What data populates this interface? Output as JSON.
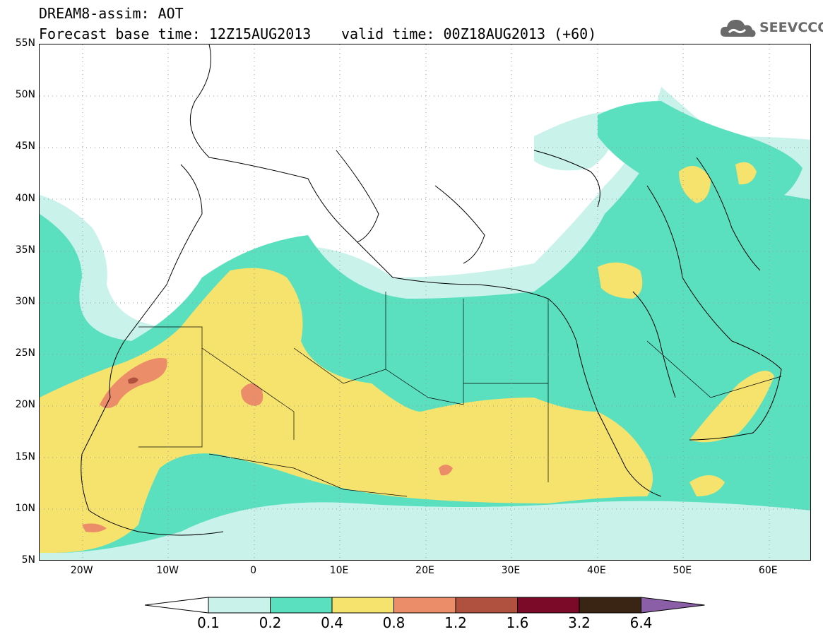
{
  "header": {
    "line1": "DREAM8-assim: AOT",
    "base_time": "Forecast base time: 12Z15AUG2013",
    "valid_time": "valid time: 00Z18AUG2013 (+60)"
  },
  "logo": {
    "text": "SEEVCCC",
    "icon": "cloud-icon",
    "color": "#6a6a6a"
  },
  "axes": {
    "lat_labels": [
      "55N",
      "50N",
      "45N",
      "40N",
      "35N",
      "30N",
      "25N",
      "20N",
      "15N",
      "10N",
      "5N"
    ],
    "lon_labels": [
      "20W",
      "10W",
      "0",
      "10E",
      "20E",
      "30E",
      "40E",
      "50E",
      "60E"
    ],
    "lat_range": [
      5,
      55
    ],
    "lon_range": [
      -25,
      65
    ],
    "grid": "dotted"
  },
  "legend": {
    "labels": [
      "0.1",
      "0.2",
      "0.4",
      "0.8",
      "1.2",
      "1.6",
      "3.2",
      "6.4"
    ],
    "colors": [
      "#c8f2ea",
      "#5be0bf",
      "#f5e36e",
      "#eb8d68",
      "#b0503e",
      "#7a0a28",
      "#3a2414",
      "#8a5fa8"
    ]
  }
}
